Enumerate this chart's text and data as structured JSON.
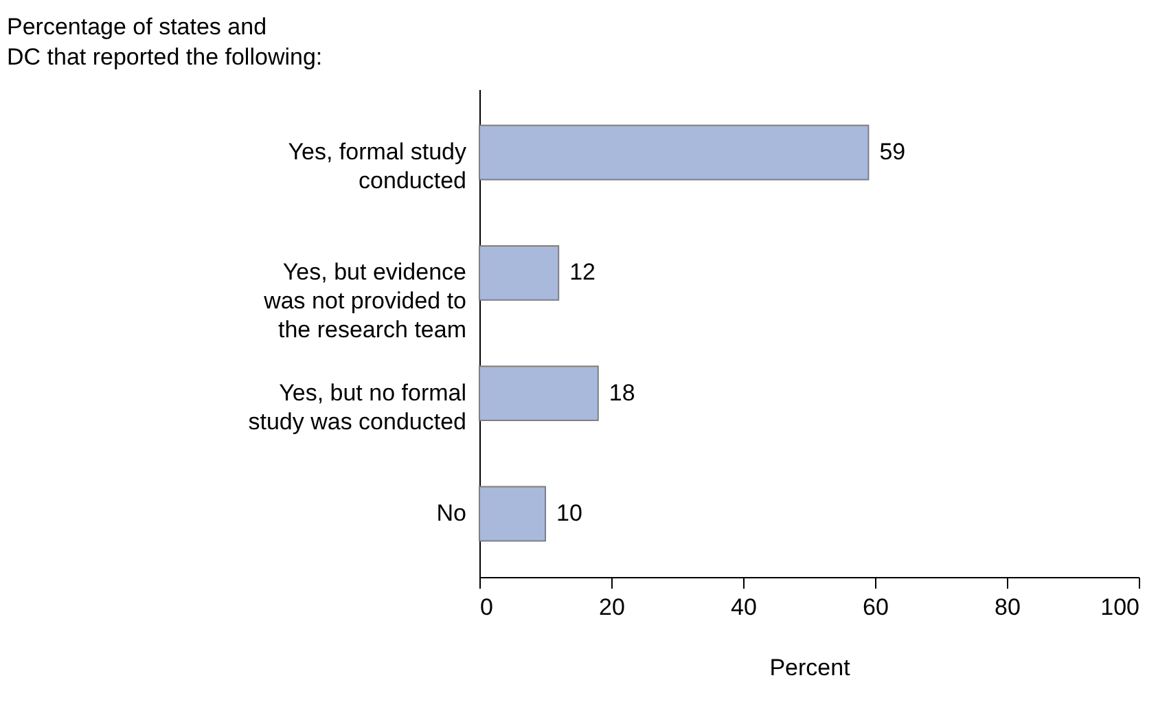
{
  "chart_data": {
    "type": "bar",
    "orientation": "horizontal",
    "title": "Percentage of states and\nDC that reported the following:",
    "categories": [
      "Yes, formal study conducted",
      "Yes, but evidence was not provided to the research team",
      "Yes, but no formal study was conducted",
      "No"
    ],
    "values": [
      59,
      12,
      18,
      10
    ],
    "color": "#a9b9dc",
    "xlim": [
      0,
      100
    ],
    "xticks": [
      0,
      20,
      40,
      60,
      80,
      100
    ],
    "xlabel": "Percent",
    "data_labels": true,
    "grid": false
  }
}
